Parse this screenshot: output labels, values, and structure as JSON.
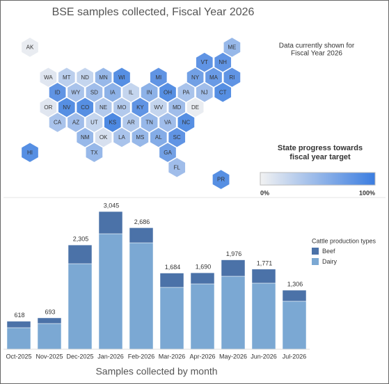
{
  "title": "BSE samples collected, Fiscal Year 2026",
  "map": {
    "note": [
      "Data currently shown for",
      "Fiscal Year 2026"
    ],
    "states": [
      {
        "label": "AK",
        "progress": 5
      },
      {
        "label": "ME",
        "progress": 50
      },
      {
        "label": "VT",
        "progress": 80
      },
      {
        "label": "NH",
        "progress": 80
      },
      {
        "label": "WA",
        "progress": 10
      },
      {
        "label": "MT",
        "progress": 30
      },
      {
        "label": "ND",
        "progress": 25
      },
      {
        "label": "MN",
        "progress": 50
      },
      {
        "label": "WI",
        "progress": 85
      },
      {
        "label": "MI",
        "progress": 80
      },
      {
        "label": "NY",
        "progress": 70
      },
      {
        "label": "MA",
        "progress": 75
      },
      {
        "label": "RI",
        "progress": 80
      },
      {
        "label": "ID",
        "progress": 80
      },
      {
        "label": "WY",
        "progress": 40
      },
      {
        "label": "SD",
        "progress": 45
      },
      {
        "label": "IA",
        "progress": 55
      },
      {
        "label": "IL",
        "progress": 25
      },
      {
        "label": "IN",
        "progress": 55
      },
      {
        "label": "OH",
        "progress": 85
      },
      {
        "label": "PA",
        "progress": 40
      },
      {
        "label": "NJ",
        "progress": 45
      },
      {
        "label": "CT",
        "progress": 85
      },
      {
        "label": "OR",
        "progress": 10
      },
      {
        "label": "NV",
        "progress": 85
      },
      {
        "label": "CO",
        "progress": 85
      },
      {
        "label": "NE",
        "progress": 35
      },
      {
        "label": "MO",
        "progress": 35
      },
      {
        "label": "KY",
        "progress": 80
      },
      {
        "label": "WV",
        "progress": 25
      },
      {
        "label": "MD",
        "progress": 45
      },
      {
        "label": "DE",
        "progress": 5
      },
      {
        "label": "CA",
        "progress": 40
      },
      {
        "label": "AZ",
        "progress": 45
      },
      {
        "label": "UT",
        "progress": 25
      },
      {
        "label": "KS",
        "progress": 90
      },
      {
        "label": "AR",
        "progress": 35
      },
      {
        "label": "TN",
        "progress": 50
      },
      {
        "label": "VA",
        "progress": 45
      },
      {
        "label": "NC",
        "progress": 85
      },
      {
        "label": "NM",
        "progress": 50
      },
      {
        "label": "OK",
        "progress": 15
      },
      {
        "label": "LA",
        "progress": 40
      },
      {
        "label": "MS",
        "progress": 50
      },
      {
        "label": "AL",
        "progress": 60
      },
      {
        "label": "SC",
        "progress": 80
      },
      {
        "label": "HI",
        "progress": 85
      },
      {
        "label": "TX",
        "progress": 50
      },
      {
        "label": "GA",
        "progress": 70
      },
      {
        "label": "FL",
        "progress": 45
      },
      {
        "label": "PR",
        "progress": 85
      }
    ],
    "legend": {
      "title": [
        "State progress towards",
        "fiscal year target"
      ],
      "colors": [
        "#f2f2f2",
        "#3b7de0"
      ],
      "ticks": [
        {
          "value": 0,
          "label": "0%"
        },
        {
          "value": 100,
          "label": "100%"
        }
      ]
    }
  },
  "chart_data": {
    "type": "bar",
    "stacked": true,
    "title": "Samples collected by month",
    "categories": [
      "Oct-2025",
      "Nov-2025",
      "Dec-2025",
      "Jan-2026",
      "Feb-2026",
      "Mar-2026",
      "Apr-2026",
      "May-2026",
      "Jun-2026",
      "Jul-2026"
    ],
    "series": [
      {
        "name": "Beef",
        "color": "#4b72a8",
        "values": [
          141,
          124,
          413,
          491,
          332,
          315,
          244,
          361,
          309,
          244
        ]
      },
      {
        "name": "Dairy",
        "color": "#7ba8d3",
        "values": [
          477,
          569,
          1892,
          2554,
          2354,
          1369,
          1446,
          1615,
          1462,
          1062
        ]
      }
    ],
    "totals": {
      "values": [
        618,
        693,
        2305,
        3045,
        2686,
        1684,
        1690,
        1976,
        1771,
        1306
      ],
      "value_labels": [
        "618",
        "693",
        "2,305",
        "3,045",
        "2,686",
        "1,684",
        "1,690",
        "1,976",
        "1,771",
        "1,306"
      ]
    },
    "ylim": [
      0,
      3200
    ],
    "legend_title": "Cattle production types"
  }
}
